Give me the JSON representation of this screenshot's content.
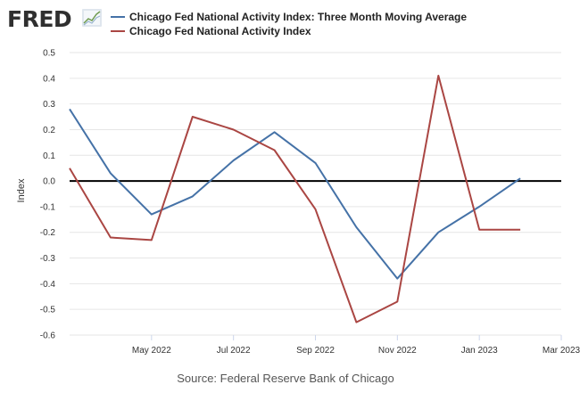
{
  "brand": {
    "logo_text": "FRED",
    "logo_icon": "chart-trend-icon"
  },
  "colors": {
    "series_1": "#4572a7",
    "series_2": "#aa4643",
    "zero_line": "#000000",
    "grid": "#e6e6e6"
  },
  "source": "Source: Federal Reserve Bank of Chicago",
  "chart_data": {
    "type": "line",
    "title": "",
    "ylabel": "Index",
    "xlabel": "",
    "ylim": [
      -0.6,
      0.5
    ],
    "yticks": [
      {
        "value": 0.5,
        "label": "0.5"
      },
      {
        "value": 0.4,
        "label": "0.4"
      },
      {
        "value": 0.3,
        "label": "0.3"
      },
      {
        "value": 0.2,
        "label": "0.2"
      },
      {
        "value": 0.1,
        "label": "0.1"
      },
      {
        "value": 0.0,
        "label": "0.0"
      },
      {
        "value": -0.1,
        "label": "-0.1"
      },
      {
        "value": -0.2,
        "label": "-0.2"
      },
      {
        "value": -0.3,
        "label": "-0.3"
      },
      {
        "value": -0.4,
        "label": "-0.4"
      },
      {
        "value": -0.5,
        "label": "-0.5"
      },
      {
        "value": -0.6,
        "label": "-0.6"
      }
    ],
    "xlim": [
      "2022-03",
      "2023-03"
    ],
    "xticks": [
      {
        "value": "2022-05",
        "label": "May 2022"
      },
      {
        "value": "2022-07",
        "label": "Jul 2022"
      },
      {
        "value": "2022-09",
        "label": "Sep 2022"
      },
      {
        "value": "2022-11",
        "label": "Nov 2022"
      },
      {
        "value": "2023-01",
        "label": "Jan 2023"
      },
      {
        "value": "2023-03",
        "label": "Mar 2023"
      }
    ],
    "x": [
      "2022-03",
      "2022-04",
      "2022-05",
      "2022-06",
      "2022-07",
      "2022-08",
      "2022-09",
      "2022-10",
      "2022-11",
      "2022-12",
      "2023-01",
      "2023-02",
      "2023-03"
    ],
    "series": [
      {
        "name": "Chicago Fed National Activity Index: Three Month Moving Average",
        "color": "#4572a7",
        "values": [
          0.28,
          0.03,
          -0.13,
          -0.06,
          0.08,
          0.19,
          0.07,
          -0.18,
          -0.38,
          -0.2,
          -0.1,
          0.01,
          null
        ]
      },
      {
        "name": "Chicago Fed National Activity Index",
        "color": "#aa4643",
        "values": [
          0.05,
          -0.22,
          -0.23,
          0.25,
          0.2,
          0.12,
          -0.11,
          -0.55,
          -0.47,
          0.41,
          -0.19,
          -0.19,
          null
        ]
      }
    ],
    "reference_line": {
      "value": 0.0
    },
    "grid": true,
    "legend_position": "top"
  }
}
